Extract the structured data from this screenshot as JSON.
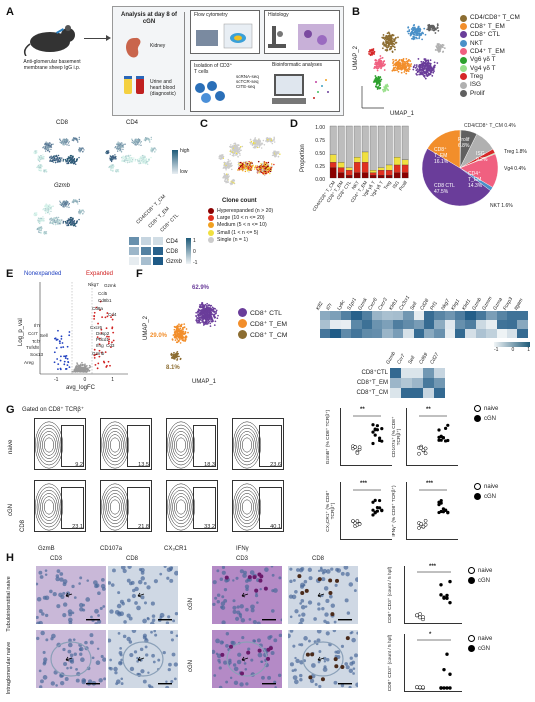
{
  "panels": {
    "A": {
      "letter": "A",
      "injection": "Anti-glomerular basement membrane sheep IgG i.p.",
      "analysis_title": "Analysis at day 8 of cGN",
      "kidney": "Kidney",
      "urine": "Urine and heart blood (diagnostic)",
      "flow": "Flow cytometry",
      "histology": "Histology",
      "isolation": "Isolation of CD3⁺ T cells",
      "seq_lines": [
        "scRNA-seq",
        "scTCR-seq",
        "CITE-seq"
      ],
      "bioinfo": "Bioinformatic analyses"
    },
    "B": {
      "letter": "B",
      "xlabel": "UMAP_1",
      "ylabel": "UMAP_2",
      "legend": [
        {
          "label": "CD4/CD8⁺ T_CM",
          "color": "#8c6d31"
        },
        {
          "label": "CD8⁺ T_EM",
          "color": "#f28e2b"
        },
        {
          "label": "CD8⁺ CTL",
          "color": "#6a3d9a"
        },
        {
          "label": "NKT",
          "color": "#4a90c8"
        },
        {
          "label": "CD4⁺ T_EM",
          "color": "#f06080"
        },
        {
          "label": "Vg6 γδ T",
          "color": "#2ca02c"
        },
        {
          "label": "Vg4 γδ T",
          "color": "#98df8a"
        },
        {
          "label": "Treg",
          "color": "#d62728"
        },
        {
          "label": "ISG",
          "color": "#b0b0b0"
        },
        {
          "label": "Prolif",
          "color": "#606060"
        }
      ]
    },
    "feature": {
      "titles": [
        "CD8",
        "CD4",
        "Gzmb"
      ],
      "scale_high": "high",
      "scale_low": "low",
      "heat_cols": [
        "CD4/CD8⁺ T_CM",
        "CD8⁺ T_EM",
        "CD8⁺ CTL"
      ],
      "heat_rows": [
        "CD4",
        "CD8",
        "Gzmb"
      ],
      "heat_ticks": [
        "1",
        "0",
        "-1"
      ],
      "heat_values": [
        [
          0.3,
          -0.6,
          -0.7
        ],
        [
          -0.2,
          0.5,
          0.9
        ],
        [
          -0.9,
          -0.3,
          1.0
        ]
      ]
    },
    "C": {
      "letter": "C",
      "legend_title": "Clone count",
      "legend": [
        {
          "label": "Hyperexpanded (n > 20)",
          "color": "#8b0000"
        },
        {
          "label": "Large (10 < n <= 20)",
          "color": "#e03020"
        },
        {
          "label": "Medium (5 < n <= 10)",
          "color": "#f0a020"
        },
        {
          "label": "Small (1 < n <= 5)",
          "color": "#f0e040"
        },
        {
          "label": "Single (n = 1)",
          "color": "#cccccc"
        }
      ]
    },
    "D": {
      "letter": "D",
      "ylabel": "Proportion",
      "yticks": [
        "1.00",
        "0.75",
        "0.50",
        "0.25",
        "0.00"
      ],
      "categories": [
        "CD4/CD8⁺ T_CM",
        "CD8⁺ T_EM",
        "CD8⁺ CTL",
        "NKT",
        "CD4⁺ T_EM",
        "Vg6 γδ T",
        "Vg4 γδ T",
        "Treg",
        "ISG",
        "Prolif"
      ],
      "pie_labels": {
        "tcm": "CD4/CD8⁺ T_CM 0.4%",
        "prolif": "Prolif 6.8%",
        "isg": "ISG 9.2%",
        "tem8": "CD8⁺ T_EM 16.1%",
        "tem4": "CD4⁺ T_EM 14.3%",
        "treg": "Treg 1.8%",
        "vg4": "Vg4 0.4%",
        "ctl": "CD8 CTL 47.5%",
        "nkt": "NKT 1.6%"
      }
    },
    "E": {
      "letter": "E",
      "nonexp": "Nonexpanded",
      "exp": "Expanded",
      "xlabel": "avg_logFC",
      "ylabel": "Log_p_val",
      "xticks": [
        "-1",
        "0",
        "1"
      ],
      "genes_right": [
        "Nkg7",
        "Gzmk",
        "Ccl5",
        "Cd8b1",
        "Cd8a",
        "Cd4",
        "Cxcr6",
        "Dusp2",
        "Pdcd1",
        "Ifng",
        "Cd3",
        "Gzmb"
      ],
      "genes_left": [
        "Il7r",
        "Ccr7",
        "Sell",
        "Tcf7",
        "Tnfsf8",
        "Sox13",
        "Areg"
      ]
    },
    "F": {
      "letter": "F",
      "xlabel": "UMAP_1",
      "ylabel": "UMAP_2",
      "pct_ctl": "62.9%",
      "pct_em": "29.0%",
      "pct_cm": "8.1%",
      "legend": [
        {
          "label": "CD8⁺ CTL",
          "color": "#6a3d9a"
        },
        {
          "label": "CD8⁺ T_EM",
          "color": "#f28e2b"
        },
        {
          "label": "CD8⁺ T_CM",
          "color": "#8c6d31"
        }
      ],
      "genes_top": [
        "Klf2",
        "Il7r",
        "Ly6c",
        "S1pr1",
        "Gzmk",
        "Cxcr6",
        "Cxcr3",
        "Klrb1",
        "Cx3cr1",
        "Sell",
        "Cd28",
        "Prf1",
        "Nkg7",
        "Klrg1",
        "Klrd1",
        "Gzmb",
        "Gzmm",
        "Gzma",
        "Foxp3",
        "Itgam"
      ],
      "genes_bottom": [
        "Gzmb",
        "Ccr7",
        "Sell",
        "Cd69",
        "Cd27"
      ],
      "rows": [
        "CD8⁺CTL",
        "CD8⁺T_EM",
        "CD8⁺T_CM"
      ],
      "scale_ticks": [
        "-1",
        "0",
        "1"
      ]
    },
    "G": {
      "letter": "G",
      "gated": "Gated on CD8⁺ TCRβ⁺",
      "row_labels": [
        "naive",
        "cGN"
      ],
      "ylabel": "CD8",
      "markers": [
        "GzmB",
        "CD107a",
        "CX₃CR1",
        "IFNγ"
      ],
      "naive_vals": [
        "9.2",
        "13.5",
        "18.3",
        "23.6"
      ],
      "cgn_vals": [
        "23.1",
        "21.8",
        "33.2",
        "40.1"
      ],
      "stat_labels": [
        "GzmB⁺ (% CD8⁺ TCRβ⁺)",
        "CD107a⁺ (% CD8⁺ TCRβ⁺)",
        "CX₃CR1⁺ (% CD8⁺ TCRβ⁺)",
        "IFNγ⁺ (% CD8⁺ TCRβ⁺)"
      ],
      "sig": [
        "**",
        "**",
        "***",
        "***"
      ],
      "legend": [
        "naive",
        "cGN"
      ]
    },
    "H": {
      "letter": "H",
      "col_labels": [
        "CD3",
        "CD8",
        "CD3",
        "CD8"
      ],
      "row_left": [
        "Tubulointerstitial naive",
        "Intraglomerular naive"
      ],
      "row_right": [
        "cGN",
        "cGN"
      ],
      "stat_labels": [
        "CD8⁺ CD3⁺ (count / 5 hpf)",
        "CD8⁺ CD3⁺ (count / 5 hpf)"
      ],
      "sig": [
        "***",
        "*"
      ],
      "legend": [
        "naive",
        "cGN"
      ]
    }
  },
  "colors": {
    "ctl": "#6a3d9a",
    "tem8": "#f28e2b",
    "tcm": "#8c6d31",
    "nkt": "#4a90c8",
    "tem4": "#f06080",
    "vg6": "#2ca02c",
    "vg4": "#98df8a",
    "treg": "#d62728",
    "isg": "#b0b0b0",
    "prolif": "#606060",
    "heat": "#2e6f86"
  }
}
